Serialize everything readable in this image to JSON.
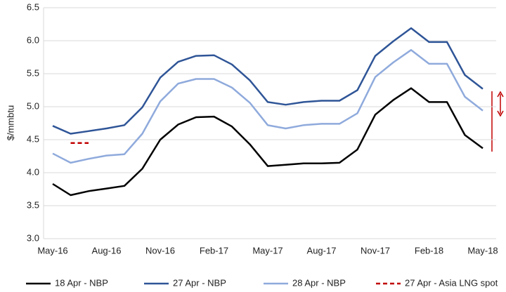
{
  "chart_data": {
    "type": "line",
    "y_label": "$/mmbtu",
    "categories": [
      "May-16",
      null,
      null,
      "Aug-16",
      null,
      null,
      "Nov-16",
      null,
      null,
      "Feb-17",
      null,
      null,
      "May-17",
      null,
      null,
      "Aug-17",
      null,
      null,
      "Nov-17",
      null,
      null,
      "Feb-18",
      null,
      null,
      "May-18"
    ],
    "series": [
      {
        "name": "18 Apr - NBP",
        "color": "#000000",
        "dash": false,
        "values": [
          3.83,
          3.66,
          3.72,
          3.76,
          3.8,
          4.06,
          4.5,
          4.73,
          4.84,
          4.85,
          4.7,
          4.43,
          4.1,
          4.12,
          4.14,
          4.14,
          4.15,
          4.35,
          4.88,
          5.1,
          5.28,
          5.07,
          5.07,
          4.57,
          4.37
        ]
      },
      {
        "name": "27 Apr - NBP",
        "color": "#2f5597",
        "dash": false,
        "values": [
          4.71,
          4.59,
          4.63,
          4.67,
          4.72,
          4.99,
          5.44,
          5.68,
          5.77,
          5.78,
          5.64,
          5.4,
          5.07,
          5.03,
          5.07,
          5.09,
          5.09,
          5.25,
          5.77,
          5.99,
          6.19,
          5.98,
          5.98,
          5.48,
          5.27
        ]
      },
      {
        "name": "28 Apr - NBP",
        "color": "#8faadc",
        "dash": false,
        "values": [
          4.29,
          4.15,
          4.21,
          4.26,
          4.28,
          4.59,
          5.08,
          5.35,
          5.42,
          5.42,
          5.29,
          5.06,
          4.72,
          4.67,
          4.72,
          4.74,
          4.74,
          4.9,
          5.45,
          5.67,
          5.86,
          5.65,
          5.65,
          5.15,
          4.94
        ]
      },
      {
        "name": "27 Apr - Asia LNG spot",
        "color": "#c00000",
        "dash": true,
        "values": [
          null,
          4.45,
          4.45,
          null,
          null,
          null,
          null,
          null,
          null,
          null,
          null,
          null,
          null,
          null,
          null,
          null,
          null,
          null,
          null,
          null,
          null,
          null,
          null,
          null,
          null
        ]
      }
    ],
    "ylim": [
      3,
      6.5
    ],
    "yticks": [
      {
        "value": 3,
        "label": "3.0"
      },
      3.5,
      {
        "value": 4,
        "label": "4.0"
      },
      4.5,
      {
        "value": 5,
        "label": "5.0"
      },
      5.5,
      {
        "value": 6,
        "label": "6.0"
      },
      6.5
    ],
    "grid": true,
    "legend": "bottom"
  }
}
